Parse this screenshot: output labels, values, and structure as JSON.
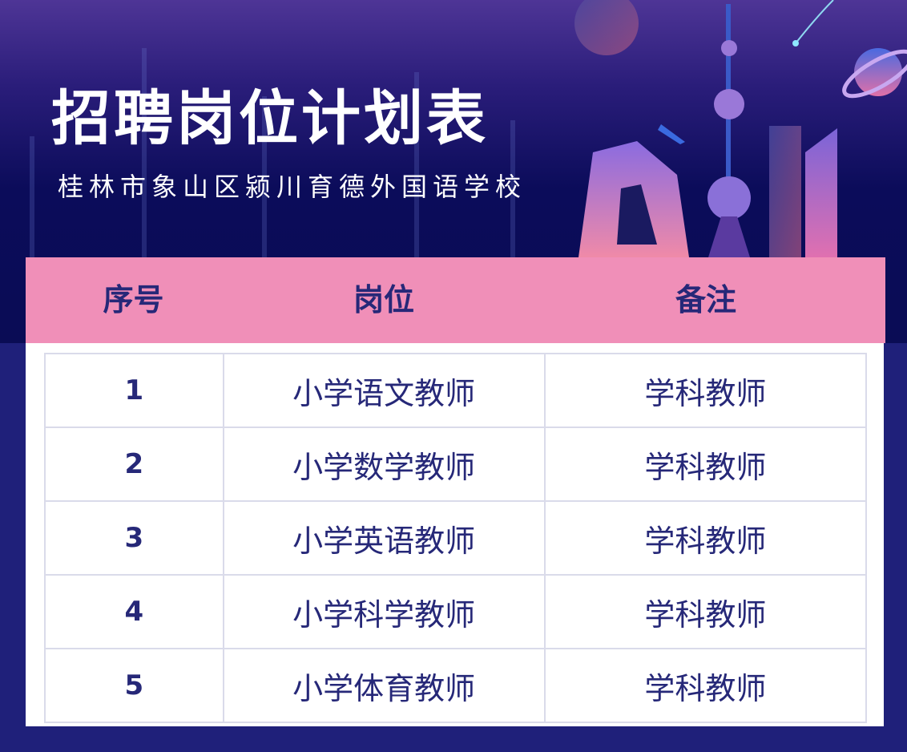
{
  "title": "招聘岗位计划表",
  "subtitle": "桂林市象山区颍川育德外国语学校",
  "table": {
    "headers": [
      "序号",
      "岗位",
      "备注"
    ],
    "rows": [
      {
        "no": "1",
        "position": "小学语文教师",
        "note": "学科教师"
      },
      {
        "no": "2",
        "position": "小学数学教师",
        "note": "学科教师"
      },
      {
        "no": "3",
        "position": "小学英语教师",
        "note": "学科教师"
      },
      {
        "no": "4",
        "position": "小学科学教师",
        "note": "学科教师"
      },
      {
        "no": "5",
        "position": "小学体育教师",
        "note": "学科教师"
      }
    ]
  },
  "colors": {
    "header_bg": "#f08fb8",
    "text": "#262878",
    "background": "#1f207a"
  }
}
